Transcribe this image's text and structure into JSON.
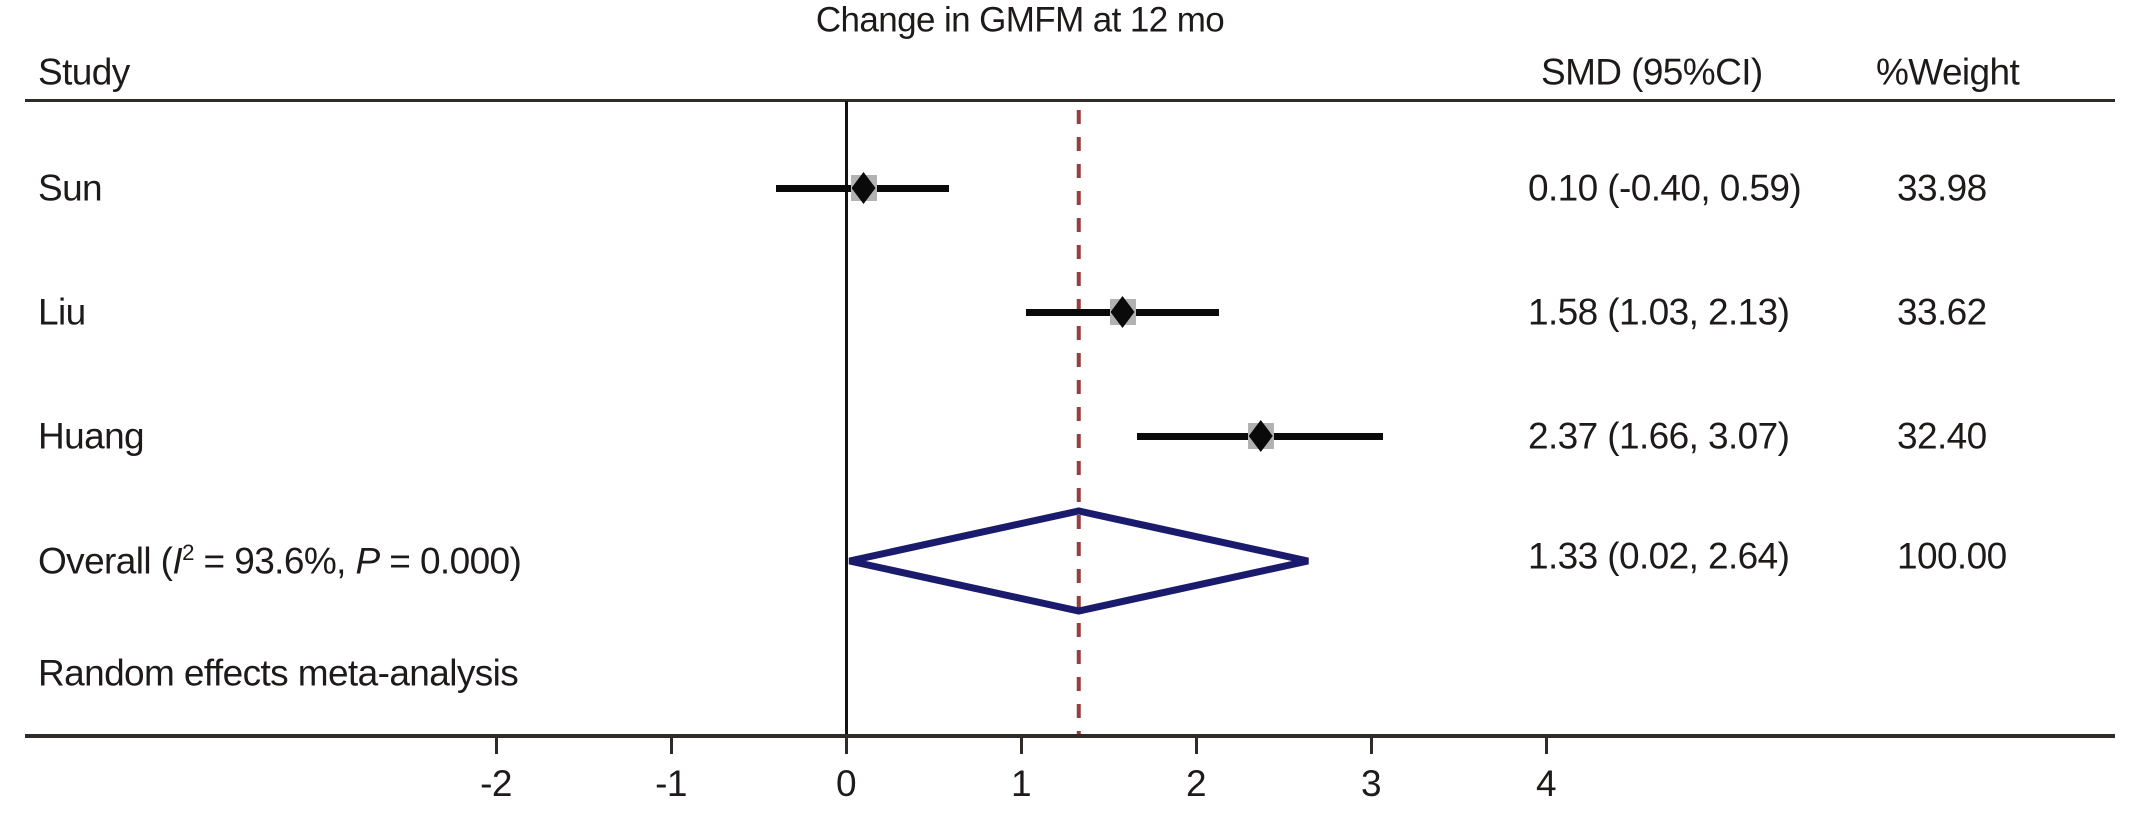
{
  "title": "Change in GMFM at 12 mo",
  "columns": {
    "study": "Study",
    "smd": "SMD (95%CI)",
    "weight": "%Weight"
  },
  "note": "Random effects meta-analysis",
  "colors": {
    "text": "#1d1a19",
    "ci_line": "#0a0a0a",
    "weight_box": "#b2b2b2",
    "diamond": "#1b1b6d",
    "overall_dashed_line": "#963d3d",
    "rules": "#2e2b29"
  },
  "chart_data": {
    "type": "forest",
    "title": "Change in GMFM at 12 mo",
    "xlabel": "",
    "x_ticks": [
      -2,
      -1,
      0,
      1,
      2,
      3,
      4
    ],
    "xlim": [
      -2.9,
      7.3
    ],
    "zero_line_x": 0,
    "overall_dashed_line_x": 1.33,
    "studies": [
      {
        "label": "Sun",
        "smd": 0.1,
        "ci_low": -0.4,
        "ci_high": 0.59,
        "weight": 33.98,
        "smd_text": "0.10 (-0.40, 0.59)",
        "weight_text": "33.98"
      },
      {
        "label": "Liu",
        "smd": 1.58,
        "ci_low": 1.03,
        "ci_high": 2.13,
        "weight": 33.62,
        "smd_text": "1.58 (1.03, 2.13)",
        "weight_text": "33.62"
      },
      {
        "label": "Huang",
        "smd": 2.37,
        "ci_low": 1.66,
        "ci_high": 3.07,
        "weight": 32.4,
        "smd_text": "2.37 (1.66, 3.07)",
        "weight_text": "32.40"
      }
    ],
    "overall": {
      "label_parts": {
        "prefix": "Overall (",
        "stat_i": "I",
        "sup": "2",
        "mid": " = 93.6%, ",
        "stat_p": "P",
        "suffix": " = 0.000)"
      },
      "smd": 1.33,
      "ci_low": 0.02,
      "ci_high": 2.64,
      "weight": 100.0,
      "smd_text": "1.33 (0.02, 2.64)",
      "weight_text": "100.00",
      "heterogeneity_i2": "93.6%",
      "heterogeneity_p": "0.000"
    },
    "note": "Random effects meta-analysis",
    "legend": null,
    "grid": false
  }
}
